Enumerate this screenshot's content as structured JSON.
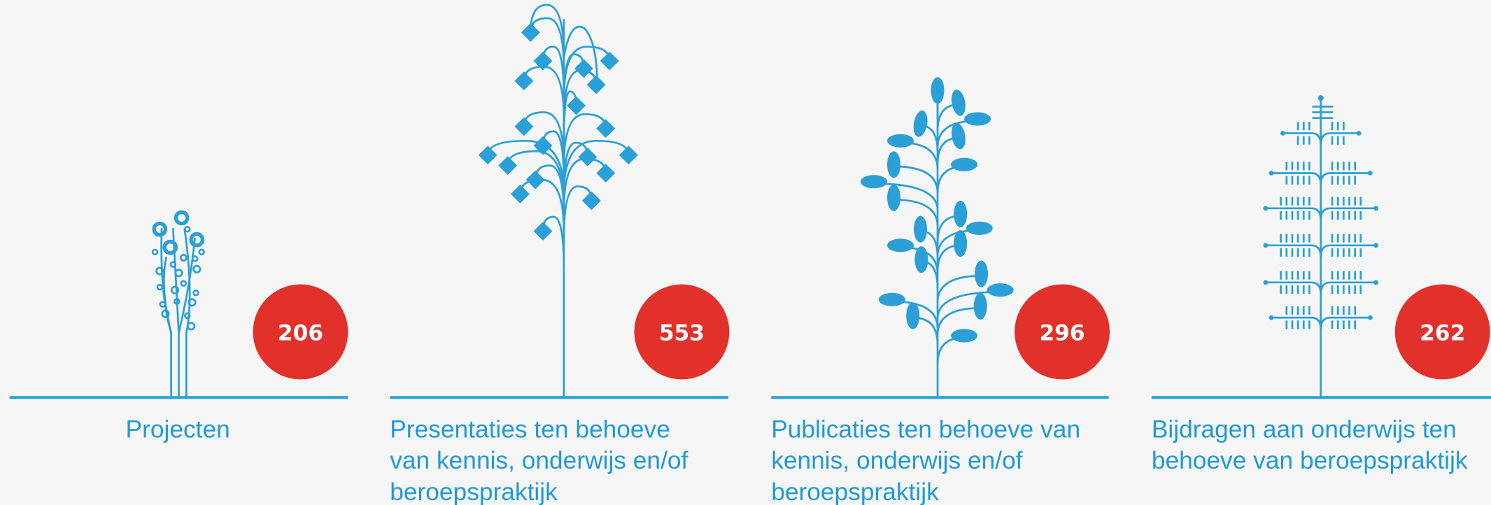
{
  "items": [
    {
      "value": 206,
      "label": [
        "Projecten"
      ]
    },
    {
      "value": 553,
      "label": [
        "Presentaties ten behoeve",
        "van kennis, onderwijs en/of",
        "beroepspraktijk"
      ]
    },
    {
      "value": 296,
      "label": [
        "Publicaties ten behoeve van",
        "kennis, onderwijs en/of",
        "beroepspraktijk"
      ]
    },
    {
      "value": 262,
      "label": [
        "Bijdragen aan onderwijs ten",
        "behoeve van beroepspraktijk"
      ]
    }
  ]
}
